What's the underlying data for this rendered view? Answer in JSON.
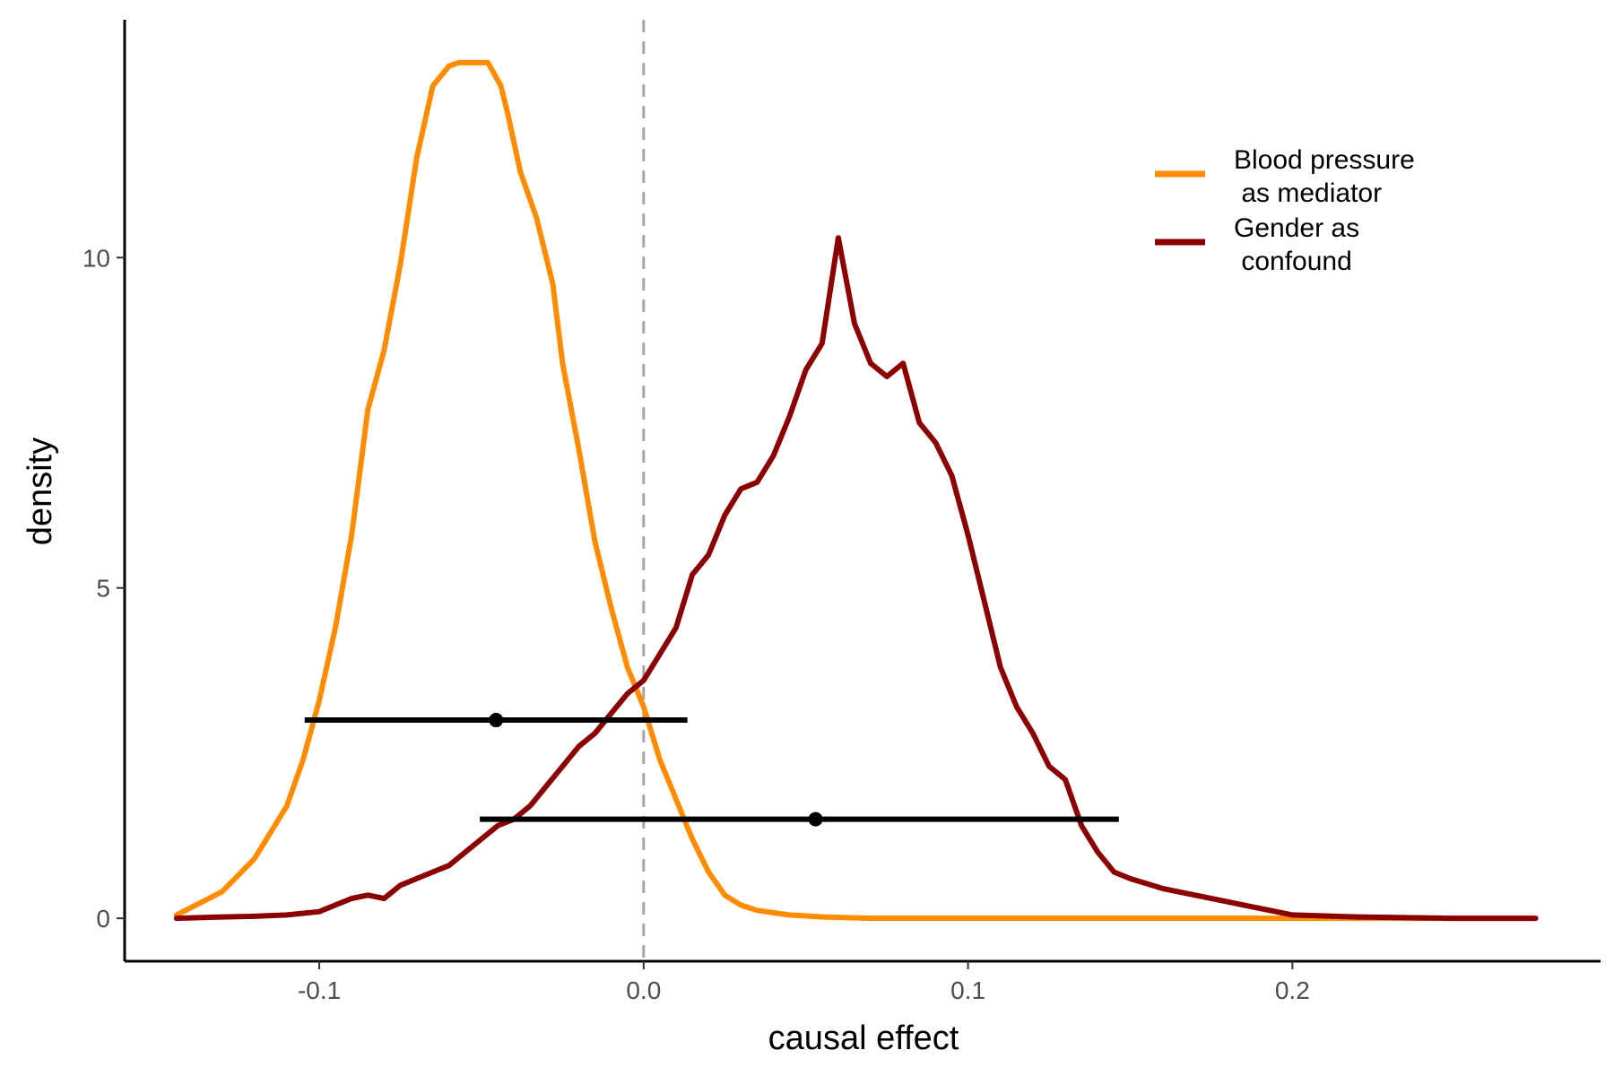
{
  "chart_data": {
    "type": "line",
    "xlabel": "causal effect",
    "ylabel": "density",
    "xlim": [
      -0.16,
      0.295
    ],
    "ylim": [
      -0.65,
      13.6
    ],
    "x_ticks": [
      {
        "value": -0.1,
        "label": "-0.1"
      },
      {
        "value": 0.0,
        "label": "0.0"
      },
      {
        "value": 0.1,
        "label": "0.1"
      },
      {
        "value": 0.2,
        "label": "0.2"
      }
    ],
    "y_ticks": [
      {
        "value": 0,
        "label": "0"
      },
      {
        "value": 5,
        "label": "5"
      },
      {
        "value": 10,
        "label": "10"
      }
    ],
    "reference_line": {
      "x": 0.0,
      "style": "dashed",
      "color": "#a6a6a6"
    },
    "legend": {
      "placement": "top-right"
    },
    "series": [
      {
        "name": "Blood pressure\n as mediator",
        "color": "#ff8c00",
        "x": [
          -0.144,
          -0.13,
          -0.12,
          -0.11,
          -0.105,
          -0.1,
          -0.095,
          -0.09,
          -0.085,
          -0.08,
          -0.075,
          -0.07,
          -0.065,
          -0.06,
          -0.057,
          -0.055,
          -0.052,
          -0.048,
          -0.044,
          -0.042,
          -0.038,
          -0.033,
          -0.028,
          -0.025,
          -0.02,
          -0.015,
          -0.01,
          -0.005,
          0.0,
          0.005,
          0.01,
          0.015,
          0.02,
          0.025,
          0.03,
          0.035,
          0.045,
          0.055,
          0.07,
          0.1,
          0.15,
          0.2,
          0.25,
          0.275
        ],
        "values": [
          0.05,
          0.4,
          0.9,
          1.7,
          2.4,
          3.3,
          4.4,
          5.8,
          7.7,
          8.6,
          9.9,
          11.5,
          12.6,
          12.9,
          12.95,
          12.95,
          12.95,
          12.95,
          12.6,
          12.2,
          11.3,
          10.6,
          9.6,
          8.4,
          7.1,
          5.7,
          4.7,
          3.8,
          3.2,
          2.4,
          1.8,
          1.2,
          0.7,
          0.35,
          0.2,
          0.12,
          0.05,
          0.02,
          0.0,
          0.0,
          0.0,
          0.0,
          0.0,
          0.0
        ]
      },
      {
        "name": "Gender as\n confound",
        "color": "#8b0000",
        "x": [
          -0.144,
          -0.13,
          -0.12,
          -0.11,
          -0.1,
          -0.09,
          -0.085,
          -0.08,
          -0.075,
          -0.07,
          -0.065,
          -0.06,
          -0.055,
          -0.05,
          -0.045,
          -0.04,
          -0.035,
          -0.03,
          -0.025,
          -0.02,
          -0.015,
          -0.01,
          -0.005,
          0.0,
          0.005,
          0.01,
          0.015,
          0.02,
          0.025,
          0.03,
          0.035,
          0.04,
          0.045,
          0.05,
          0.055,
          0.06,
          0.065,
          0.07,
          0.075,
          0.08,
          0.085,
          0.09,
          0.095,
          0.1,
          0.105,
          0.11,
          0.115,
          0.12,
          0.125,
          0.13,
          0.135,
          0.14,
          0.145,
          0.15,
          0.16,
          0.17,
          0.18,
          0.19,
          0.2,
          0.22,
          0.25,
          0.275
        ],
        "values": [
          0.0,
          0.02,
          0.03,
          0.05,
          0.1,
          0.3,
          0.35,
          0.3,
          0.5,
          0.6,
          0.7,
          0.8,
          1.0,
          1.2,
          1.4,
          1.5,
          1.7,
          2.0,
          2.3,
          2.6,
          2.8,
          3.1,
          3.4,
          3.6,
          4.0,
          4.4,
          5.2,
          5.5,
          6.1,
          6.5,
          6.6,
          7.0,
          7.6,
          8.3,
          8.7,
          10.3,
          9.0,
          8.4,
          8.2,
          8.4,
          7.5,
          7.2,
          6.7,
          5.8,
          4.8,
          3.8,
          3.2,
          2.8,
          2.3,
          2.1,
          1.4,
          1.0,
          0.7,
          0.6,
          0.45,
          0.35,
          0.25,
          0.15,
          0.05,
          0.02,
          0.0,
          0.0
        ]
      }
    ],
    "intervals": [
      {
        "series": "Blood pressure\n as mediator",
        "y": 3.0,
        "low": -0.1045,
        "high": 0.0135,
        "point": -0.0455
      },
      {
        "series": "Gender as\n confound",
        "y": 1.5,
        "low": -0.0505,
        "high": 0.1465,
        "point": 0.053
      }
    ]
  }
}
